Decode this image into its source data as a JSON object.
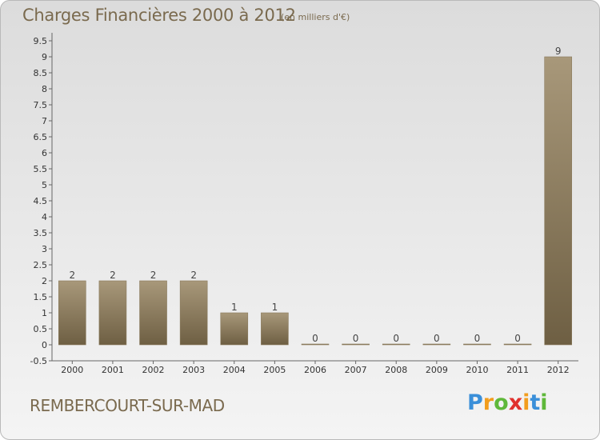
{
  "chart_data": {
    "type": "bar",
    "title": "Charges Financières 2000 à 2012",
    "unit_note": "(en milliers d'€)",
    "categories": [
      "2000",
      "2001",
      "2002",
      "2003",
      "2004",
      "2005",
      "2006",
      "2007",
      "2008",
      "2009",
      "2010",
      "2011",
      "2012"
    ],
    "values": [
      2,
      2,
      2,
      2,
      1,
      1,
      0,
      0,
      0,
      0,
      0,
      0,
      9
    ],
    "data_labels": [
      "2",
      "2",
      "2",
      "2",
      "1",
      "1",
      "0",
      "0",
      "0",
      "0",
      "0",
      "0",
      "9"
    ],
    "y_ticks": [
      "-0.5",
      "0",
      "0.5",
      "1",
      "1.5",
      "2",
      "2.5",
      "3",
      "3.5",
      "4",
      "4.5",
      "5",
      "5.5",
      "6",
      "6.5",
      "7",
      "7.5",
      "8",
      "8.5",
      "9",
      "9.5"
    ],
    "ylim": [
      -0.5,
      9.5
    ],
    "xlabel": "",
    "ylabel": "",
    "grid": false,
    "bar_color_top": "#a8987a",
    "bar_color_bottom": "#6e5f43"
  },
  "footer": {
    "commune": "REMBERCOURT-SUR-MAD",
    "logo": [
      "P",
      "r",
      "o",
      "x",
      "i",
      "t",
      "i"
    ],
    "logo_colors": [
      "#3a8fd9",
      "#f29d1d",
      "#5fb83a",
      "#e0312e",
      "#f29d1d",
      "#3a8fd9",
      "#5fb83a"
    ]
  }
}
